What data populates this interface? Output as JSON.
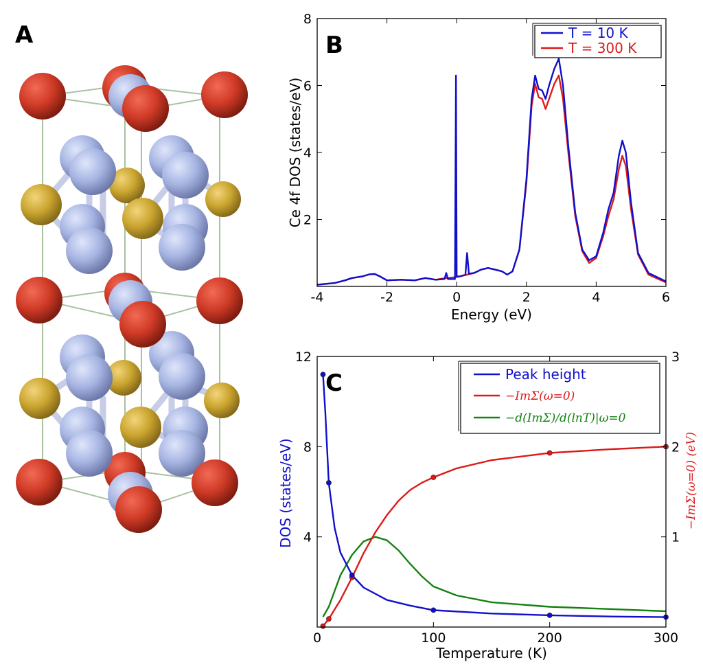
{
  "panels": {
    "a": "A",
    "b": "B",
    "c": "C"
  },
  "colors": {
    "blue": "#1010cc",
    "red": "#dd1a1a",
    "green": "#128212",
    "ce": "#cf3a26",
    "al": "#a6b4e2",
    "cu": "#c9a42e"
  },
  "chart_data": [
    {
      "id": "B",
      "type": "line",
      "xlabel": "Energy (eV)",
      "ylabel": "Ce 4f DOS (states/eV)",
      "xlim": [
        -4,
        6
      ],
      "ylim": [
        0,
        8
      ],
      "xticks": [
        -4,
        -2,
        0,
        2,
        4,
        6
      ],
      "yticks": [
        2,
        4,
        6,
        8
      ],
      "legend_position": "top-right",
      "grid": false,
      "series": [
        {
          "name": "T = 10 K",
          "color": "#1010cc",
          "points": [
            [
              -4.0,
              0.05
            ],
            [
              -3.5,
              0.1
            ],
            [
              -3.2,
              0.18
            ],
            [
              -3.0,
              0.25
            ],
            [
              -2.7,
              0.3
            ],
            [
              -2.5,
              0.36
            ],
            [
              -2.35,
              0.37
            ],
            [
              -2.2,
              0.3
            ],
            [
              -2.0,
              0.18
            ],
            [
              -1.6,
              0.2
            ],
            [
              -1.2,
              0.18
            ],
            [
              -0.9,
              0.25
            ],
            [
              -0.6,
              0.2
            ],
            [
              -0.35,
              0.22
            ],
            [
              -0.3,
              0.4
            ],
            [
              -0.25,
              0.22
            ],
            [
              -0.05,
              0.22
            ],
            [
              -0.02,
              6.3
            ],
            [
              0.0,
              0.3
            ],
            [
              0.1,
              0.3
            ],
            [
              0.25,
              0.35
            ],
            [
              0.3,
              1.0
            ],
            [
              0.35,
              0.38
            ],
            [
              0.5,
              0.4
            ],
            [
              0.7,
              0.5
            ],
            [
              0.9,
              0.55
            ],
            [
              1.1,
              0.5
            ],
            [
              1.3,
              0.45
            ],
            [
              1.45,
              0.35
            ],
            [
              1.6,
              0.45
            ],
            [
              1.8,
              1.1
            ],
            [
              2.0,
              3.2
            ],
            [
              2.15,
              5.6
            ],
            [
              2.25,
              6.3
            ],
            [
              2.35,
              5.9
            ],
            [
              2.45,
              5.85
            ],
            [
              2.55,
              5.6
            ],
            [
              2.65,
              6.0
            ],
            [
              2.8,
              6.5
            ],
            [
              2.93,
              6.8
            ],
            [
              3.05,
              6.0
            ],
            [
              3.2,
              4.2
            ],
            [
              3.4,
              2.2
            ],
            [
              3.6,
              1.1
            ],
            [
              3.8,
              0.78
            ],
            [
              4.0,
              0.9
            ],
            [
              4.2,
              1.6
            ],
            [
              4.35,
              2.3
            ],
            [
              4.5,
              2.8
            ],
            [
              4.65,
              3.9
            ],
            [
              4.75,
              4.35
            ],
            [
              4.85,
              4.0
            ],
            [
              5.0,
              2.5
            ],
            [
              5.2,
              1.0
            ],
            [
              5.5,
              0.4
            ],
            [
              6.0,
              0.15
            ]
          ]
        },
        {
          "name": "T = 300 K",
          "color": "#dd1a1a",
          "points": [
            [
              -4.0,
              0.05
            ],
            [
              -3.5,
              0.1
            ],
            [
              -3.2,
              0.18
            ],
            [
              -3.0,
              0.25
            ],
            [
              -2.7,
              0.3
            ],
            [
              -2.5,
              0.36
            ],
            [
              -2.35,
              0.37
            ],
            [
              -2.2,
              0.3
            ],
            [
              -2.0,
              0.18
            ],
            [
              -1.6,
              0.2
            ],
            [
              -1.2,
              0.18
            ],
            [
              -0.9,
              0.25
            ],
            [
              -0.6,
              0.2
            ],
            [
              -0.3,
              0.25
            ],
            [
              0.0,
              0.28
            ],
            [
              0.3,
              0.35
            ],
            [
              0.5,
              0.4
            ],
            [
              0.7,
              0.5
            ],
            [
              0.9,
              0.55
            ],
            [
              1.1,
              0.5
            ],
            [
              1.3,
              0.45
            ],
            [
              1.45,
              0.35
            ],
            [
              1.6,
              0.45
            ],
            [
              1.8,
              1.1
            ],
            [
              2.0,
              3.1
            ],
            [
              2.15,
              5.4
            ],
            [
              2.25,
              6.05
            ],
            [
              2.35,
              5.65
            ],
            [
              2.45,
              5.6
            ],
            [
              2.55,
              5.3
            ],
            [
              2.65,
              5.6
            ],
            [
              2.8,
              6.05
            ],
            [
              2.93,
              6.3
            ],
            [
              3.05,
              5.6
            ],
            [
              3.2,
              4.0
            ],
            [
              3.4,
              2.1
            ],
            [
              3.6,
              1.05
            ],
            [
              3.8,
              0.7
            ],
            [
              4.0,
              0.85
            ],
            [
              4.2,
              1.5
            ],
            [
              4.35,
              2.1
            ],
            [
              4.5,
              2.6
            ],
            [
              4.65,
              3.5
            ],
            [
              4.75,
              3.9
            ],
            [
              4.85,
              3.6
            ],
            [
              5.0,
              2.3
            ],
            [
              5.2,
              0.95
            ],
            [
              5.5,
              0.35
            ],
            [
              6.0,
              0.12
            ]
          ]
        }
      ]
    },
    {
      "id": "C",
      "type": "line",
      "xlabel": "Temperature (K)",
      "ylabel": "DOS (states/eV)",
      "y2label": "−ImΣ(ω=0) (eV)",
      "xlim": [
        0,
        300
      ],
      "ylim": [
        0,
        12
      ],
      "y2lim": [
        0,
        3
      ],
      "xticks": [
        0,
        100,
        200,
        300
      ],
      "yticks": [
        4,
        8,
        12
      ],
      "y2ticks": [
        1,
        2,
        3
      ],
      "legend_position": "top-right",
      "grid": false,
      "series": [
        {
          "name": "Peak height",
          "color": "#1010cc",
          "axis": "left",
          "points": [
            [
              5,
              11.2
            ],
            [
              7,
              9.5
            ],
            [
              10,
              6.4
            ],
            [
              15,
              4.4
            ],
            [
              20,
              3.3
            ],
            [
              30,
              2.3
            ],
            [
              40,
              1.75
            ],
            [
              60,
              1.2
            ],
            [
              80,
              0.95
            ],
            [
              100,
              0.75
            ],
            [
              150,
              0.6
            ],
            [
              200,
              0.52
            ],
            [
              250,
              0.47
            ],
            [
              300,
              0.44
            ]
          ],
          "markers": [
            [
              5,
              11.2
            ],
            [
              10,
              6.4
            ],
            [
              30,
              2.3
            ],
            [
              100,
              0.75
            ],
            [
              200,
              0.52
            ],
            [
              300,
              0.44
            ]
          ]
        },
        {
          "name": "−ImΣ(ω=0)",
          "color": "#dd1a1a",
          "axis": "right",
          "points": [
            [
              5,
              0.01
            ],
            [
              10,
              0.09
            ],
            [
              20,
              0.3
            ],
            [
              30,
              0.55
            ],
            [
              40,
              0.82
            ],
            [
              50,
              1.05
            ],
            [
              60,
              1.24
            ],
            [
              70,
              1.4
            ],
            [
              80,
              1.52
            ],
            [
              90,
              1.6
            ],
            [
              100,
              1.66
            ],
            [
              120,
              1.76
            ],
            [
              150,
              1.85
            ],
            [
              200,
              1.93
            ],
            [
              250,
              1.97
            ],
            [
              300,
              2.0
            ]
          ],
          "markers": [
            [
              5,
              0.01
            ],
            [
              10,
              0.09
            ],
            [
              30,
              0.55
            ],
            [
              100,
              1.66
            ],
            [
              200,
              1.93
            ],
            [
              300,
              2.0
            ]
          ]
        },
        {
          "name": "−d(ImΣ)/d(lnT)|ω=0",
          "color": "#128212",
          "axis": "left",
          "points": [
            [
              5,
              0.45
            ],
            [
              10,
              0.9
            ],
            [
              15,
              1.6
            ],
            [
              20,
              2.3
            ],
            [
              30,
              3.2
            ],
            [
              40,
              3.8
            ],
            [
              50,
              4.0
            ],
            [
              60,
              3.85
            ],
            [
              70,
              3.4
            ],
            [
              80,
              2.8
            ],
            [
              90,
              2.25
            ],
            [
              100,
              1.8
            ],
            [
              120,
              1.4
            ],
            [
              150,
              1.1
            ],
            [
              200,
              0.9
            ],
            [
              250,
              0.8
            ],
            [
              300,
              0.7
            ]
          ]
        }
      ]
    }
  ]
}
